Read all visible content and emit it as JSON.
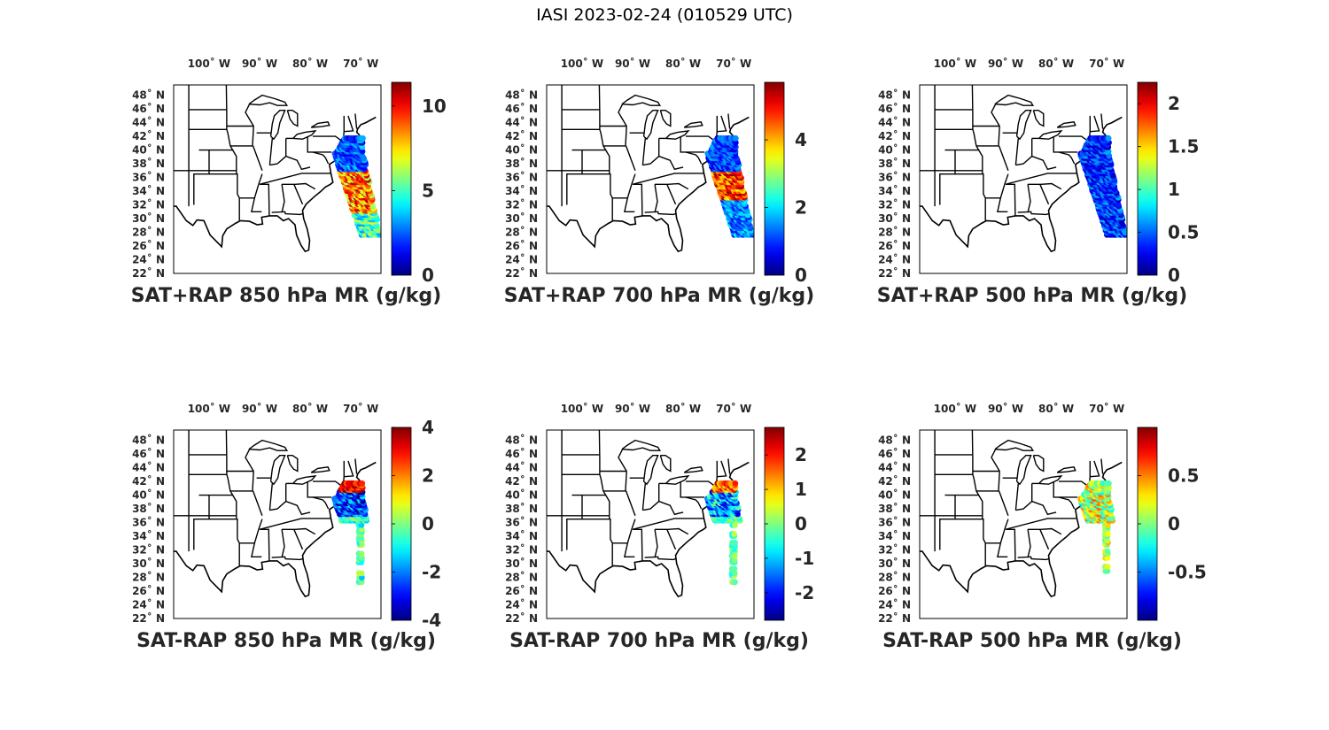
{
  "figure": {
    "title": "IASI 2023-02-24 (010529 UTC)"
  },
  "axes": {
    "lon_labels": [
      "100˚ W",
      "90˚ W",
      "80˚ W",
      "70˚ W"
    ],
    "lon_values": [
      -100,
      -90,
      -80,
      -70
    ],
    "lat_labels": [
      "48˚ N",
      "46˚ N",
      "44˚ N",
      "42˚ N",
      "40˚ N",
      "38˚ N",
      "36˚ N",
      "34˚ N",
      "32˚ N",
      "30˚ N",
      "28˚ N",
      "26˚ N",
      "24˚ N",
      "22˚ N"
    ],
    "lat_values": [
      48,
      46,
      44,
      42,
      40,
      38,
      36,
      34,
      32,
      30,
      28,
      26,
      24,
      22
    ],
    "lon_range": [
      -107,
      -66
    ],
    "lat_range": [
      22,
      49.5
    ]
  },
  "colormap": "jet",
  "panels": [
    {
      "id": "p850-sum",
      "title": "SAT+RAP 850 hPa MR (g/kg)",
      "clim": [
        0,
        11.4
      ],
      "ticks": [
        0,
        5,
        10
      ],
      "tick_labels": [
        "0",
        "5",
        "10"
      ],
      "pattern": "sum850"
    },
    {
      "id": "p700-sum",
      "title": "SAT+RAP 700 hPa MR (g/kg)",
      "clim": [
        0,
        5.7
      ],
      "ticks": [
        0,
        2,
        4
      ],
      "tick_labels": [
        "0",
        "2",
        "4"
      ],
      "pattern": "sum700"
    },
    {
      "id": "p500-sum",
      "title": "SAT+RAP 500 hPa MR (g/kg)",
      "clim": [
        0,
        2.25
      ],
      "ticks": [
        0,
        0.5,
        1,
        1.5,
        2
      ],
      "tick_labels": [
        "0",
        "0.5",
        "1",
        "1.5",
        "2"
      ],
      "pattern": "sum500"
    },
    {
      "id": "p850-diff",
      "title": "SAT-RAP 850 hPa MR (g/kg)",
      "clim": [
        -4,
        4
      ],
      "ticks": [
        -4,
        -2,
        0,
        2,
        4
      ],
      "tick_labels": [
        "-4",
        "-2",
        "0",
        "2",
        "4"
      ],
      "pattern": "diff850"
    },
    {
      "id": "p700-diff",
      "title": "SAT-RAP 700 hPa MR (g/kg)",
      "clim": [
        -2.8,
        2.8
      ],
      "ticks": [
        -2,
        -1,
        0,
        1,
        2
      ],
      "tick_labels": [
        "-2",
        "-1",
        "0",
        "1",
        "2"
      ],
      "pattern": "diff700"
    },
    {
      "id": "p500-diff",
      "title": "SAT-RAP 500 hPa MR (g/kg)",
      "clim": [
        -1,
        1
      ],
      "ticks": [
        -0.5,
        0,
        0.5
      ],
      "tick_labels": [
        "-0.5",
        "0",
        "0.5"
      ],
      "pattern": "diff500"
    }
  ]
}
